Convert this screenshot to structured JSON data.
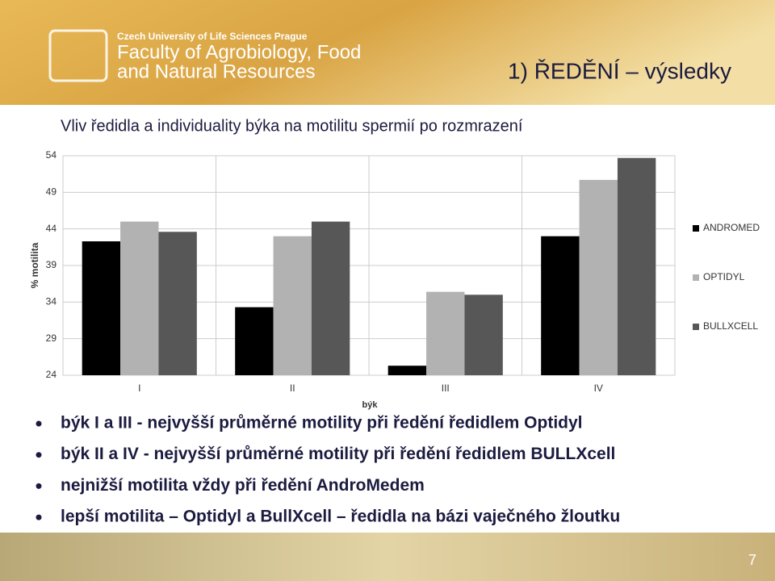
{
  "header": {
    "university": "Czech University of Life Sciences Prague",
    "faculty_line1": "Faculty of Agrobiology, Food",
    "faculty_line2": "and Natural Resources",
    "slide_title": "1) ŘEDĚNÍ – výsledky"
  },
  "chart_data": {
    "type": "bar",
    "title": "Vliv ředidla a individuality býka na motilitu spermií po rozmrazení",
    "x_label": "býk",
    "y_label": "% motilita",
    "categories": [
      "I",
      "II",
      "III",
      "IV"
    ],
    "series": [
      {
        "name": "ANDROMED",
        "color": "#000000",
        "values": [
          42.3,
          33.3,
          25.3,
          43
        ]
      },
      {
        "name": "OPTIDYL",
        "color": "#b2b2b2",
        "values": [
          45,
          43,
          35.4,
          50.7
        ]
      },
      {
        "name": "BULLXCELL",
        "color": "#575757",
        "values": [
          43.6,
          45,
          35,
          53.7
        ]
      }
    ],
    "ylim": [
      24,
      54
    ],
    "yticks": [
      24,
      29,
      34,
      39,
      44,
      49,
      54
    ],
    "grid": true,
    "legend": "right"
  },
  "bullets": [
    "býk I a III  - nejvyšší průměrné motility při ředění ředidlem Optidyl",
    "býk II a IV  - nejvyšší průměrné motility při ředění ředidlem BULLXcell",
    "nejnižší motilita vždy při ředění AndroMedem",
    "lepší motilita – Optidyl a BullXcell – ředidla na bázi vaječného žloutku"
  ],
  "page_number": "7"
}
